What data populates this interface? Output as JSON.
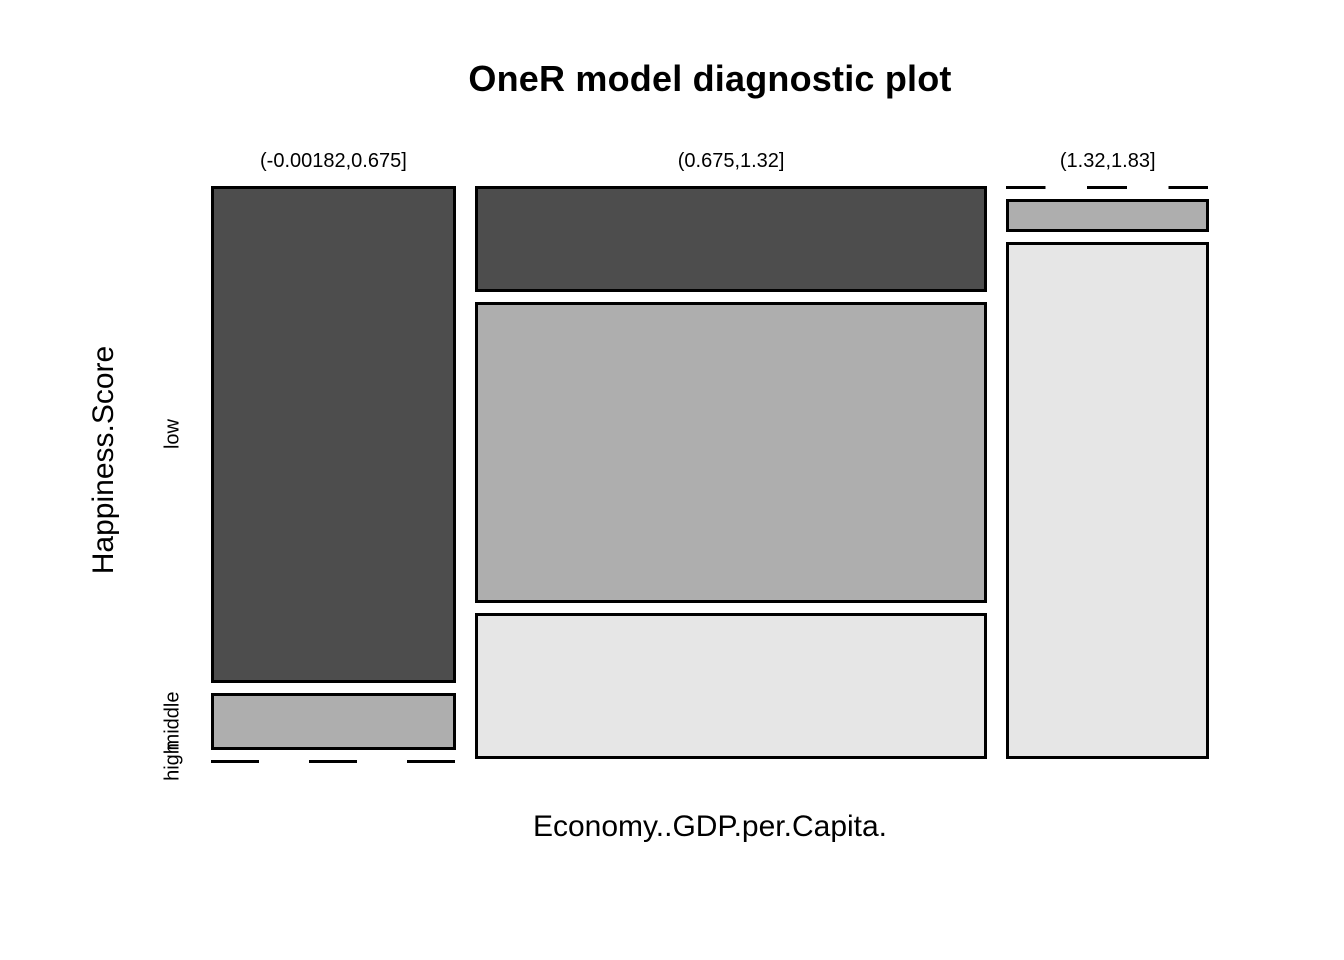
{
  "title": "OneR model diagnostic plot",
  "chart_data": {
    "type": "mosaic",
    "title": "OneR model diagnostic plot",
    "xlabel": "Economy..GDP.per.Capita.",
    "ylabel": "Happiness.Score",
    "x_categories": [
      "(-0.00182,0.675]",
      "(0.675,1.32]",
      "(1.32,1.83]"
    ],
    "y_categories": [
      "low",
      "middle",
      "high"
    ],
    "row_colors": {
      "low": "#4D4D4D",
      "middle": "#AEAEAE",
      "high": "#E6E6E6"
    },
    "border_color": "#000000",
    "background_color": "#ffffff",
    "legend": "none",
    "axes_drawn": false,
    "zero_cells_drawn_as": "dashed-line",
    "columns": [
      {
        "x_label": "(-0.00182,0.675]",
        "width_fraction": 0.255,
        "cells": [
          {
            "y": "low",
            "fraction": 0.897
          },
          {
            "y": "middle",
            "fraction": 0.103
          },
          {
            "y": "high",
            "fraction": 0.0
          }
        ]
      },
      {
        "x_label": "(0.675,1.32]",
        "width_fraction": 0.534,
        "cells": [
          {
            "y": "low",
            "fraction": 0.191
          },
          {
            "y": "middle",
            "fraction": 0.543
          },
          {
            "y": "high",
            "fraction": 0.264
          }
        ]
      },
      {
        "x_label": "(1.32,1.83]",
        "width_fraction": 0.211,
        "cells": [
          {
            "y": "low",
            "fraction": 0.0
          },
          {
            "y": "middle",
            "fraction": 0.059
          },
          {
            "y": "high",
            "fraction": 0.934
          }
        ]
      }
    ]
  }
}
